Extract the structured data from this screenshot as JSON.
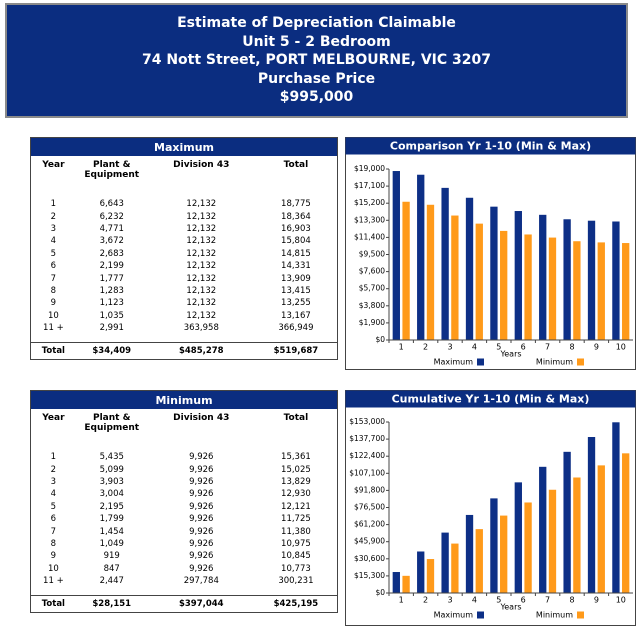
{
  "header": {
    "lines": [
      "Estimate of Depreciation Claimable",
      "Unit 5 - 2 Bedroom",
      "74 Nott Street, PORT MELBOURNE, VIC 3207",
      "Purchase Price",
      "$995,000"
    ]
  },
  "tables": [
    {
      "title": "Maximum",
      "columns": [
        "Year",
        "Plant & Equipment",
        "Division 43",
        "Total"
      ],
      "rows": [
        [
          "1",
          "6,643",
          "12,132",
          "18,775"
        ],
        [
          "2",
          "6,232",
          "12,132",
          "18,364"
        ],
        [
          "3",
          "4,771",
          "12,132",
          "16,903"
        ],
        [
          "4",
          "3,672",
          "12,132",
          "15,804"
        ],
        [
          "5",
          "2,683",
          "12,132",
          "14,815"
        ],
        [
          "6",
          "2,199",
          "12,132",
          "14,331"
        ],
        [
          "7",
          "1,777",
          "12,132",
          "13,909"
        ],
        [
          "8",
          "1,283",
          "12,132",
          "13,415"
        ],
        [
          "9",
          "1,123",
          "12,132",
          "13,255"
        ],
        [
          "10",
          "1,035",
          "12,132",
          "13,167"
        ],
        [
          "11 +",
          "2,991",
          "363,958",
          "366,949"
        ]
      ],
      "total": [
        "Total",
        "$34,409",
        "$485,278",
        "$519,687"
      ]
    },
    {
      "title": "Minimum",
      "columns": [
        "Year",
        "Plant & Equipment",
        "Division 43",
        "Total"
      ],
      "rows": [
        [
          "1",
          "5,435",
          "9,926",
          "15,361"
        ],
        [
          "2",
          "5,099",
          "9,926",
          "15,025"
        ],
        [
          "3",
          "3,903",
          "9,926",
          "13,829"
        ],
        [
          "4",
          "3,004",
          "9,926",
          "12,930"
        ],
        [
          "5",
          "2,195",
          "9,926",
          "12,121"
        ],
        [
          "6",
          "1,799",
          "9,926",
          "11,725"
        ],
        [
          "7",
          "1,454",
          "9,926",
          "11,380"
        ],
        [
          "8",
          "1,049",
          "9,926",
          "10,975"
        ],
        [
          "9",
          "919",
          "9,926",
          "10,845"
        ],
        [
          "10",
          "847",
          "9,926",
          "10,773"
        ],
        [
          "11 +",
          "2,447",
          "297,784",
          "300,231"
        ]
      ],
      "total": [
        "Total",
        "$28,151",
        "$397,044",
        "$425,195"
      ]
    }
  ],
  "chart_data": [
    {
      "type": "bar",
      "title": "Comparison Yr 1-10 (Min & Max)",
      "x_label": "Years",
      "categories": [
        "1",
        "2",
        "3",
        "4",
        "5",
        "6",
        "7",
        "8",
        "9",
        "10"
      ],
      "series": [
        {
          "name": "Maximum",
          "color": "#0d2f86",
          "values": [
            18775,
            18364,
            16903,
            15804,
            14815,
            14331,
            13909,
            13415,
            13255,
            13167
          ]
        },
        {
          "name": "Minimum",
          "color": "#ff9a1a",
          "values": [
            15361,
            15025,
            13829,
            12930,
            12121,
            11725,
            11380,
            10975,
            10845,
            10773
          ]
        }
      ],
      "ylim": [
        0,
        19000
      ],
      "yticks": [
        {
          "value": 0,
          "label": "$0"
        },
        {
          "value": 1900,
          "label": "$1,900"
        },
        {
          "value": 3800,
          "label": "$3,800"
        },
        {
          "value": 5700,
          "label": "$5,700"
        },
        {
          "value": 7600,
          "label": "$7,600"
        },
        {
          "value": 9500,
          "label": "$9,500"
        },
        {
          "value": 11400,
          "label": "$11,400"
        },
        {
          "value": 13300,
          "label": "$13,300"
        },
        {
          "value": 15200,
          "label": "$15,200"
        },
        {
          "value": 17100,
          "label": "$17,100"
        },
        {
          "value": 19000,
          "label": "$19,000"
        }
      ],
      "grid": false,
      "legend": "bottom"
    },
    {
      "type": "bar",
      "title": "Cumulative Yr 1-10 (Min & Max)",
      "x_label": "Years",
      "categories": [
        "1",
        "2",
        "3",
        "4",
        "5",
        "6",
        "7",
        "8",
        "9",
        "10"
      ],
      "series": [
        {
          "name": "Maximum",
          "color": "#0d2f86",
          "values": [
            18775,
            37139,
            54042,
            69846,
            84661,
            98992,
            112901,
            126316,
            139571,
            152738
          ]
        },
        {
          "name": "Minimum",
          "color": "#ff9a1a",
          "values": [
            15361,
            30386,
            44215,
            57145,
            69266,
            80991,
            92371,
            103346,
            114191,
            124964
          ]
        }
      ],
      "ylim": [
        0,
        153000
      ],
      "yticks": [
        {
          "value": 0,
          "label": "$0"
        },
        {
          "value": 15300,
          "label": "$15,300"
        },
        {
          "value": 30600,
          "label": "$30,600"
        },
        {
          "value": 45900,
          "label": "$45,900"
        },
        {
          "value": 61200,
          "label": "$61,200"
        },
        {
          "value": 76500,
          "label": "$76,500"
        },
        {
          "value": 91800,
          "label": "$91,800"
        },
        {
          "value": 107100,
          "label": "$107,100"
        },
        {
          "value": 122400,
          "label": "$122,400"
        },
        {
          "value": 137700,
          "label": "$137,700"
        },
        {
          "value": 153000,
          "label": "$153,000"
        }
      ],
      "grid": false,
      "legend": "bottom"
    }
  ]
}
